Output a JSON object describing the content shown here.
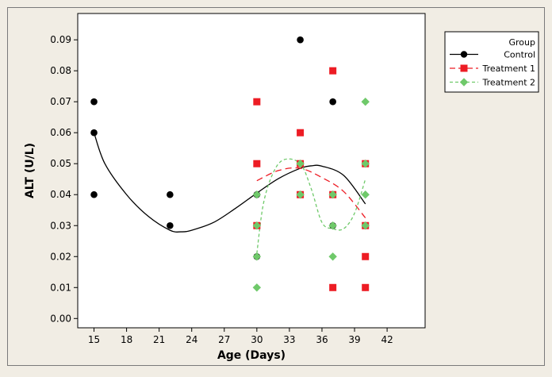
{
  "chart_data": {
    "type": "scatter",
    "xlabel": "Age (Days)",
    "ylabel": "ALT (U/L)",
    "xlim": [
      13.5,
      45.5
    ],
    "ylim": [
      -0.003,
      0.0985
    ],
    "x_ticks": [
      15,
      18,
      21,
      24,
      27,
      30,
      33,
      36,
      39,
      42
    ],
    "x_tick_labels": [
      "15",
      "18",
      "21",
      "24",
      "27",
      "30",
      "33",
      "36",
      "39",
      "42"
    ],
    "y_ticks": [
      0,
      0.01,
      0.02,
      0.03,
      0.04,
      0.05,
      0.06,
      0.07,
      0.08,
      0.09
    ],
    "y_tick_labels": [
      "0.00",
      "0.01",
      "0.02",
      "0.03",
      "0.04",
      "0.05",
      "0.06",
      "0.07",
      "0.08",
      "0.09"
    ],
    "grid": false,
    "legend": {
      "placement": "outside-top-right",
      "title": "Group",
      "entries": [
        "Control",
        "Treatment 1",
        "Treatment 2"
      ]
    },
    "series": [
      {
        "name": "Control",
        "color": "#000000",
        "marker": "circle",
        "line": "solid",
        "points": [
          [
            15,
            0.07
          ],
          [
            15,
            0.06
          ],
          [
            15,
            0.04
          ],
          [
            22,
            0.04
          ],
          [
            22,
            0.03
          ],
          [
            30,
            0.04
          ],
          [
            30,
            0.03
          ],
          [
            30,
            0.02
          ],
          [
            34,
            0.09
          ],
          [
            34,
            0.05
          ],
          [
            34,
            0.04
          ],
          [
            37,
            0.07
          ],
          [
            37,
            0.04
          ],
          [
            37,
            0.03
          ],
          [
            40,
            0.05
          ],
          [
            40,
            0.03
          ],
          [
            40,
            0.01
          ]
        ],
        "fit": [
          [
            15,
            0.06
          ],
          [
            16,
            0.05
          ],
          [
            18,
            0.04
          ],
          [
            20,
            0.033
          ],
          [
            22,
            0.0285
          ],
          [
            23,
            0.028
          ],
          [
            24,
            0.0285
          ],
          [
            26,
            0.031
          ],
          [
            28,
            0.0355
          ],
          [
            30,
            0.0405
          ],
          [
            32,
            0.0452
          ],
          [
            34,
            0.0485
          ],
          [
            35,
            0.0493
          ],
          [
            36,
            0.0492
          ],
          [
            38,
            0.0462
          ],
          [
            40,
            0.037
          ]
        ]
      },
      {
        "name": "Treatment 1",
        "color": "#ed1c24",
        "marker": "square",
        "line": "dashed",
        "points": [
          [
            30,
            0.07
          ],
          [
            30,
            0.05
          ],
          [
            30,
            0.03
          ],
          [
            34,
            0.06
          ],
          [
            34,
            0.05
          ],
          [
            34,
            0.04
          ],
          [
            37,
            0.08
          ],
          [
            37,
            0.04
          ],
          [
            37,
            0.01
          ],
          [
            40,
            0.05
          ],
          [
            40,
            0.03
          ],
          [
            40,
            0.02
          ],
          [
            40,
            0.01
          ]
        ],
        "fit": [
          [
            30,
            0.0445
          ],
          [
            32,
            0.0478
          ],
          [
            34,
            0.0485
          ],
          [
            36,
            0.0455
          ],
          [
            38,
            0.041
          ],
          [
            40,
            0.0325
          ]
        ]
      },
      {
        "name": "Treatment 2",
        "color": "#6fc96a",
        "marker": "diamond",
        "line": "dashed",
        "points": [
          [
            30,
            0.04
          ],
          [
            30,
            0.03
          ],
          [
            30,
            0.02
          ],
          [
            30,
            0.01
          ],
          [
            34,
            0.05
          ],
          [
            34,
            0.04
          ],
          [
            37,
            0.04
          ],
          [
            37,
            0.03
          ],
          [
            37,
            0.02
          ],
          [
            40,
            0.07
          ],
          [
            40,
            0.05
          ],
          [
            40,
            0.04
          ],
          [
            40,
            0.03
          ]
        ],
        "fit": [
          [
            30,
            0.021
          ],
          [
            30.6,
            0.037
          ],
          [
            31.5,
            0.047
          ],
          [
            32.5,
            0.0513
          ],
          [
            34,
            0.05
          ],
          [
            35,
            0.042
          ],
          [
            36,
            0.031
          ],
          [
            37,
            0.029
          ],
          [
            38,
            0.029
          ],
          [
            39,
            0.034
          ],
          [
            40,
            0.045
          ]
        ]
      }
    ]
  }
}
